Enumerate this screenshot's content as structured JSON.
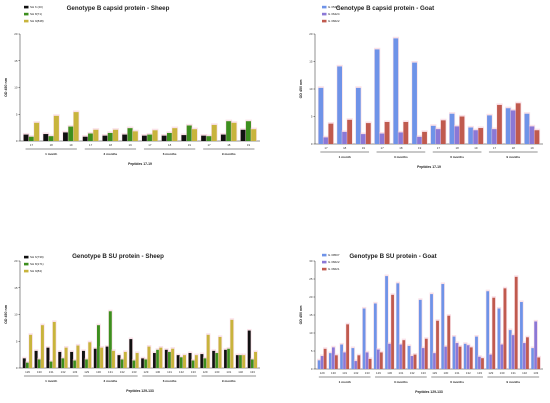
{
  "chart_data": [
    {
      "id": "sheep-capsid",
      "type": "bar",
      "title": "Genotype B capsid protein - Sheep",
      "ylabel": "OD 450 nm",
      "xlabel": "Peptides 17-19",
      "ylim": [
        0,
        20
      ],
      "yticks": [
        0,
        5,
        10,
        15,
        20
      ],
      "categories": [
        "17",
        "18",
        "19",
        "17",
        "18",
        "19",
        "17",
        "18",
        "19",
        "17",
        "18",
        "19"
      ],
      "groups": [
        "1 month",
        "3 months",
        "6 months",
        "9 months"
      ],
      "series": [
        {
          "name": "SH 6 (20)",
          "color": "#111111",
          "values": [
            1.2,
            1.3,
            1.6,
            0.8,
            1.0,
            1.2,
            1.0,
            1.0,
            1.1,
            1.0,
            1.2,
            2.1
          ]
        },
        {
          "name": "SH 8(71)",
          "color": "#3d8f1e",
          "values": [
            0.8,
            0.9,
            2.7,
            1.4,
            1.5,
            2.4,
            1.2,
            1.5,
            2.9,
            0.9,
            3.7,
            3.7
          ]
        },
        {
          "name": "SH 9(848)",
          "color": "#c8b43c",
          "values": [
            3.4,
            4.7,
            5.4,
            2.1,
            2.1,
            1.8,
            2.0,
            2.4,
            2.2,
            3.0,
            3.4,
            2.2
          ]
        }
      ]
    },
    {
      "id": "goat-capsid",
      "type": "bar",
      "title": "Genotype B capsid protein - Goat",
      "ylabel": "OD 450 nm",
      "xlabel": "Peptides 17-19",
      "ylim": [
        0,
        20
      ],
      "yticks": [
        0,
        5,
        10,
        15,
        20
      ],
      "categories": [
        "17",
        "18",
        "19",
        "17",
        "18",
        "19",
        "17",
        "18",
        "19",
        "17",
        "18",
        "19"
      ],
      "groups": [
        "1 month",
        "3 months",
        "6 months",
        "9 months"
      ],
      "series": [
        {
          "name": "G 35427",
          "color": "#6f93e8",
          "values": [
            10.2,
            14.1,
            10.2,
            17.2,
            19.2,
            14.8,
            3.3,
            5.5,
            3.0,
            5.2,
            6.5,
            5.5
          ]
        },
        {
          "name": "G 36424",
          "color": "#8b78d6",
          "values": [
            1.2,
            2.2,
            1.8,
            1.9,
            2.1,
            1.3,
            2.7,
            3.2,
            2.5,
            2.7,
            6.1,
            3.2
          ]
        },
        {
          "name": "G 36622",
          "color": "#c05a4e",
          "values": [
            3.7,
            4.4,
            3.8,
            4.0,
            4.0,
            2.2,
            4.3,
            5.0,
            2.9,
            7.1,
            7.4,
            2.5
          ]
        }
      ]
    },
    {
      "id": "sheep-su",
      "type": "bar",
      "title": "Genotype B SU protein - Sheep",
      "ylabel": "OD 450 nm",
      "xlabel": "Peptides 129-133",
      "ylim": [
        0,
        20
      ],
      "yticks": [
        0,
        5,
        10,
        15,
        20
      ],
      "categories": [
        "129",
        "130",
        "131",
        "132",
        "133",
        "129",
        "130",
        "131",
        "132",
        "133",
        "129",
        "130",
        "131",
        "132",
        "133",
        "129",
        "130",
        "131",
        "132",
        "133"
      ],
      "groups": [
        "1 month",
        "3 months",
        "6 months",
        "9 months"
      ],
      "series": [
        {
          "name": "SH 6(739)",
          "color": "#111111",
          "values": [
            1.8,
            3.2,
            3.8,
            3.0,
            3.0,
            3.2,
            3.6,
            4.0,
            2.4,
            5.4,
            1.8,
            2.8,
            3.4,
            2.4,
            2.8,
            2.6,
            3.2,
            3.4,
            2.4,
            7.0
          ]
        },
        {
          "name": "SH 8(171)",
          "color": "#3d8f1e",
          "values": [
            1.0,
            1.6,
            1.2,
            1.8,
            1.4,
            1.6,
            8.0,
            10.6,
            1.6,
            1.4,
            1.6,
            3.4,
            3.0,
            2.0,
            1.4,
            1.8,
            2.8,
            3.6,
            2.4,
            1.6
          ]
        },
        {
          "name": "SH 9(84)",
          "color": "#c8b43c",
          "values": [
            6.2,
            8.0,
            8.6,
            3.8,
            4.2,
            4.8,
            3.8,
            3.2,
            3.0,
            2.8,
            4.0,
            3.8,
            3.6,
            2.4,
            2.4,
            6.2,
            5.8,
            9.0,
            2.4,
            3.0
          ]
        }
      ]
    },
    {
      "id": "goat-su",
      "type": "bar",
      "title": "Genotype B SU protein - Goat",
      "ylabel": "OD 450 nm",
      "xlabel": "Peptides 129-133",
      "ylim": [
        0,
        30
      ],
      "yticks": [
        0,
        5,
        10,
        15,
        20,
        25,
        30
      ],
      "categories": [
        "129",
        "130",
        "131",
        "132",
        "133",
        "129",
        "130",
        "131",
        "132",
        "133",
        "129",
        "130",
        "131",
        "132",
        "133",
        "129",
        "130",
        "131",
        "132",
        "133"
      ],
      "groups": [
        "1 month",
        "3 months",
        "6 months",
        "9 months"
      ],
      "series": [
        {
          "name": "G 39507",
          "color": "#6f93e8",
          "values": [
            2.4,
            4.4,
            6.8,
            5.8,
            16.8,
            18.2,
            25.8,
            23.8,
            6.4,
            19.2,
            20.8,
            23.6,
            9.0,
            7.0,
            9.0,
            21.6,
            16.8,
            10.8,
            18.6,
            5.8
          ]
        },
        {
          "name": "G 36622",
          "color": "#8b78d6",
          "values": [
            3.6,
            6.0,
            4.6,
            2.2,
            4.6,
            5.4,
            7.0,
            6.8,
            3.6,
            5.8,
            4.4,
            6.2,
            7.2,
            6.6,
            3.4,
            4.0,
            6.8,
            9.4,
            7.2,
            13.2
          ]
        },
        {
          "name": "G 36621",
          "color": "#c05a4e",
          "values": [
            5.6,
            3.8,
            12.4,
            3.8,
            2.8,
            4.6,
            20.6,
            8.0,
            4.0,
            8.4,
            13.4,
            14.8,
            6.2,
            6.0,
            3.0,
            19.8,
            22.4,
            25.6,
            8.8,
            3.2
          ]
        }
      ]
    }
  ]
}
